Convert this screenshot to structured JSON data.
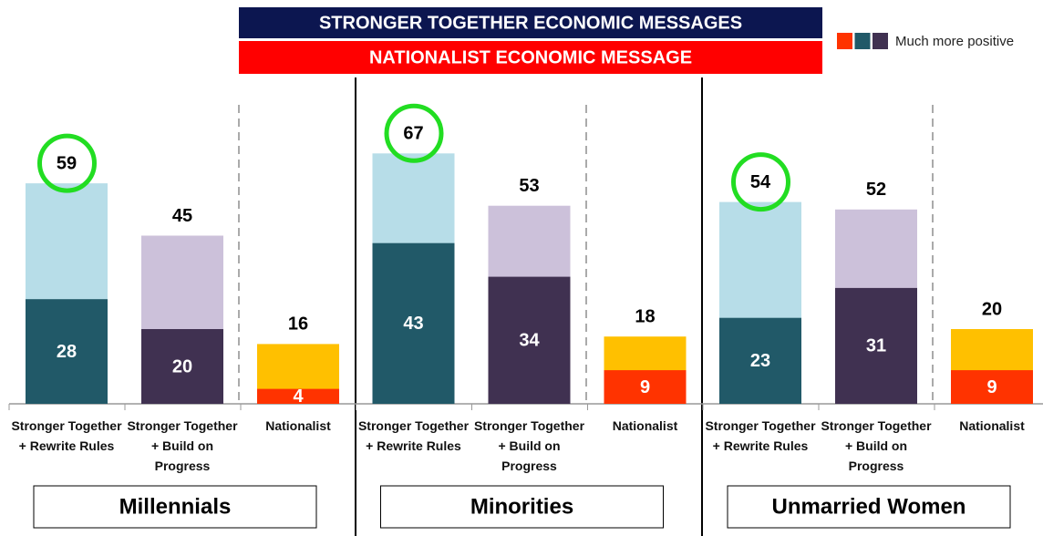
{
  "chart_data": {
    "type": "bar",
    "banner_top": "STRONGER TOGETHER ECONOMIC MESSAGES",
    "banner_bottom": "NATIONALIST ECONOMIC MESSAGE",
    "legend_label": "Much more positive",
    "categories": [
      "Stronger Together + Rewrite Rules",
      "Stronger Together + Build on Progress",
      "Nationalist"
    ],
    "total_colors": [
      "#b7dde8",
      "#ccc1da",
      "#ffc000"
    ],
    "colors": [
      "#ff3300",
      "#215968",
      "#403151"
    ],
    "bar_colors": [
      "#215968",
      "#403151",
      "#ff3300"
    ],
    "circled_bar": 0,
    "ylim": [
      0,
      100
    ],
    "groups": [
      {
        "name": "Millennials",
        "totals": [
          59,
          45,
          16
        ],
        "values": [
          28,
          20,
          4
        ]
      },
      {
        "name": "Minorities",
        "totals": [
          67,
          53,
          18
        ],
        "values": [
          43,
          34,
          9
        ]
      },
      {
        "name": "Unmarried Women",
        "totals": [
          54,
          52,
          20
        ],
        "values": [
          23,
          31,
          9
        ]
      }
    ]
  }
}
